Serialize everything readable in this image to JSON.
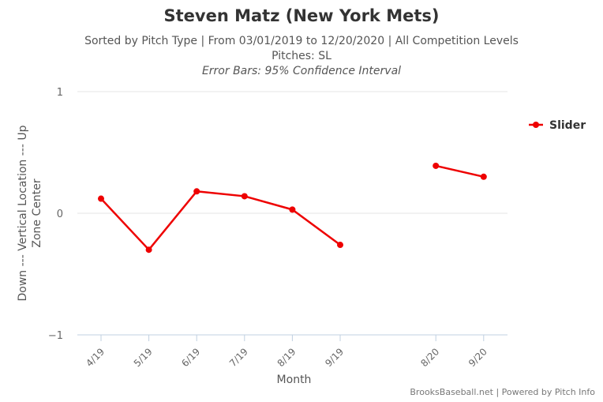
{
  "title": "Steven Matz (New York Mets)",
  "subtitle_lines": [
    "Sorted by Pitch Type | From 03/01/2019 to 12/20/2020 | All Competition Levels",
    "Pitches: SL",
    "Error Bars: 95% Confidence Interval"
  ],
  "credit": "BrooksBaseball.net | Powered by Pitch Info",
  "chart_data": {
    "type": "line",
    "title": "Steven Matz (New York Mets)",
    "xlabel": "Month",
    "ylabel": "Down --- Vertical Location --- Up",
    "ylabel2": "Zone Center",
    "ylim": [
      -1,
      1
    ],
    "yticks": [
      "1",
      "0",
      "−1"
    ],
    "categories": [
      "4/19",
      "5/19",
      "6/19",
      "7/19",
      "8/19",
      "9/19",
      "",
      "8/20",
      "9/20"
    ],
    "series": [
      {
        "name": "Slider",
        "color": "#ee0000",
        "values": [
          0.12,
          -0.3,
          0.18,
          0.14,
          0.03,
          -0.26,
          null,
          0.39,
          0.3
        ]
      }
    ],
    "legend": "top-right",
    "grid": true
  }
}
